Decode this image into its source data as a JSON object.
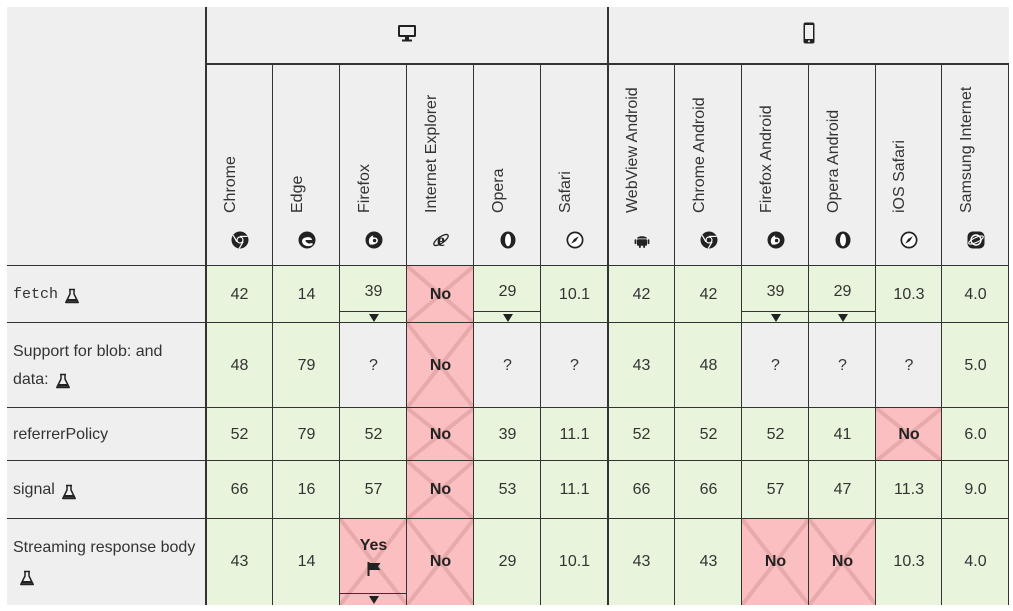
{
  "platforms": {
    "desktop_icon": "desktop-icon",
    "mobile_icon": "mobile-phone-icon"
  },
  "browsers": [
    {
      "name": "Chrome",
      "icon": "chrome-icon"
    },
    {
      "name": "Edge",
      "icon": "edge-icon"
    },
    {
      "name": "Firefox",
      "icon": "firefox-icon"
    },
    {
      "name": "Internet Explorer",
      "icon": "internet-explorer-icon"
    },
    {
      "name": "Opera",
      "icon": "opera-icon"
    },
    {
      "name": "Safari",
      "icon": "safari-icon"
    },
    {
      "name": "WebView Android",
      "icon": "android-icon"
    },
    {
      "name": "Chrome Android",
      "icon": "chrome-icon"
    },
    {
      "name": "Firefox Android",
      "icon": "firefox-icon"
    },
    {
      "name": "Opera Android",
      "icon": "opera-icon"
    },
    {
      "name": "iOS Safari",
      "icon": "safari-icon"
    },
    {
      "name": "Samsung Internet",
      "icon": "samsung-internet-icon"
    }
  ],
  "features": [
    {
      "name": "fetch",
      "code": true,
      "experimental": true,
      "cells": [
        {
          "v": "42",
          "s": "yes"
        },
        {
          "v": "14",
          "s": "yes"
        },
        {
          "v": "39",
          "s": "yes",
          "note": true
        },
        {
          "v": "No",
          "s": "no"
        },
        {
          "v": "29",
          "s": "yes",
          "note": true
        },
        {
          "v": "10.1",
          "s": "yes"
        },
        {
          "v": "42",
          "s": "yes"
        },
        {
          "v": "42",
          "s": "yes"
        },
        {
          "v": "39",
          "s": "yes",
          "note": true
        },
        {
          "v": "29",
          "s": "yes",
          "note": true
        },
        {
          "v": "10.3",
          "s": "yes"
        },
        {
          "v": "4.0",
          "s": "yes"
        }
      ]
    },
    {
      "name": "Support for blob: and data:",
      "code": false,
      "experimental": true,
      "cells": [
        {
          "v": "48",
          "s": "yes"
        },
        {
          "v": "79",
          "s": "yes"
        },
        {
          "v": "?",
          "s": "unk"
        },
        {
          "v": "No",
          "s": "no"
        },
        {
          "v": "?",
          "s": "unk"
        },
        {
          "v": "?",
          "s": "unk"
        },
        {
          "v": "43",
          "s": "yes"
        },
        {
          "v": "48",
          "s": "yes"
        },
        {
          "v": "?",
          "s": "unk"
        },
        {
          "v": "?",
          "s": "unk"
        },
        {
          "v": "?",
          "s": "unk"
        },
        {
          "v": "5.0",
          "s": "yes"
        }
      ]
    },
    {
      "name": "referrerPolicy",
      "code": false,
      "experimental": false,
      "cells": [
        {
          "v": "52",
          "s": "yes"
        },
        {
          "v": "79",
          "s": "yes"
        },
        {
          "v": "52",
          "s": "yes"
        },
        {
          "v": "No",
          "s": "no"
        },
        {
          "v": "39",
          "s": "yes"
        },
        {
          "v": "11.1",
          "s": "yes"
        },
        {
          "v": "52",
          "s": "yes"
        },
        {
          "v": "52",
          "s": "yes"
        },
        {
          "v": "52",
          "s": "yes"
        },
        {
          "v": "41",
          "s": "yes"
        },
        {
          "v": "No",
          "s": "no"
        },
        {
          "v": "6.0",
          "s": "yes"
        }
      ]
    },
    {
      "name": "signal",
      "code": false,
      "experimental": true,
      "cells": [
        {
          "v": "66",
          "s": "yes"
        },
        {
          "v": "16",
          "s": "yes"
        },
        {
          "v": "57",
          "s": "yes"
        },
        {
          "v": "No",
          "s": "no"
        },
        {
          "v": "53",
          "s": "yes"
        },
        {
          "v": "11.1",
          "s": "yes"
        },
        {
          "v": "66",
          "s": "yes"
        },
        {
          "v": "66",
          "s": "yes"
        },
        {
          "v": "57",
          "s": "yes"
        },
        {
          "v": "47",
          "s": "yes"
        },
        {
          "v": "11.3",
          "s": "yes"
        },
        {
          "v": "9.0",
          "s": "yes"
        }
      ]
    },
    {
      "name": "Streaming response body",
      "code": false,
      "experimental": true,
      "cells": [
        {
          "v": "43",
          "s": "yes"
        },
        {
          "v": "14",
          "s": "yes"
        },
        {
          "v": "Yes",
          "s": "no",
          "flag": true,
          "note": true
        },
        {
          "v": "No",
          "s": "no"
        },
        {
          "v": "29",
          "s": "yes"
        },
        {
          "v": "10.1",
          "s": "yes"
        },
        {
          "v": "43",
          "s": "yes"
        },
        {
          "v": "43",
          "s": "yes"
        },
        {
          "v": "No",
          "s": "no"
        },
        {
          "v": "No",
          "s": "no"
        },
        {
          "v": "10.3",
          "s": "yes"
        },
        {
          "v": "4.0",
          "s": "yes"
        }
      ]
    }
  ],
  "colors": {
    "supported": "#e8f5dc",
    "unsupported": "#fbbfc1",
    "unknown": "#efefef",
    "header": "#efefef",
    "border": "#333333"
  }
}
